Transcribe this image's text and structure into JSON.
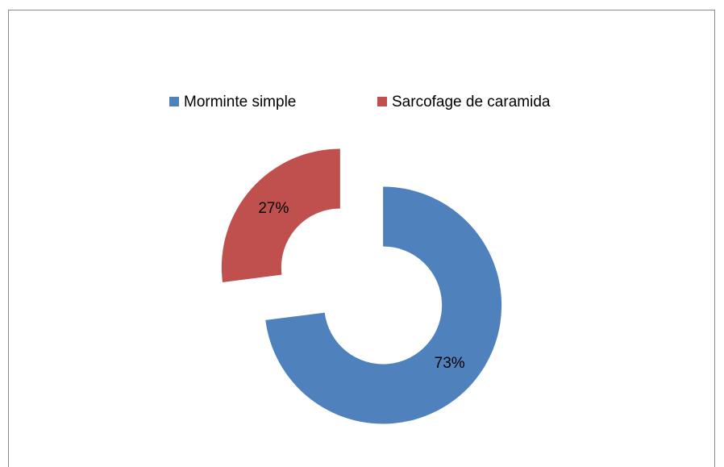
{
  "chart_data": {
    "type": "donut",
    "categories": [
      "Morminte simple",
      "Sarcofage de caramida"
    ],
    "series": [
      {
        "values": [
          73,
          27
        ],
        "value_labels": [
          "73%",
          "27%"
        ],
        "colors": [
          "#4f81bd",
          "#c0504d"
        ]
      }
    ],
    "legend": "top"
  }
}
